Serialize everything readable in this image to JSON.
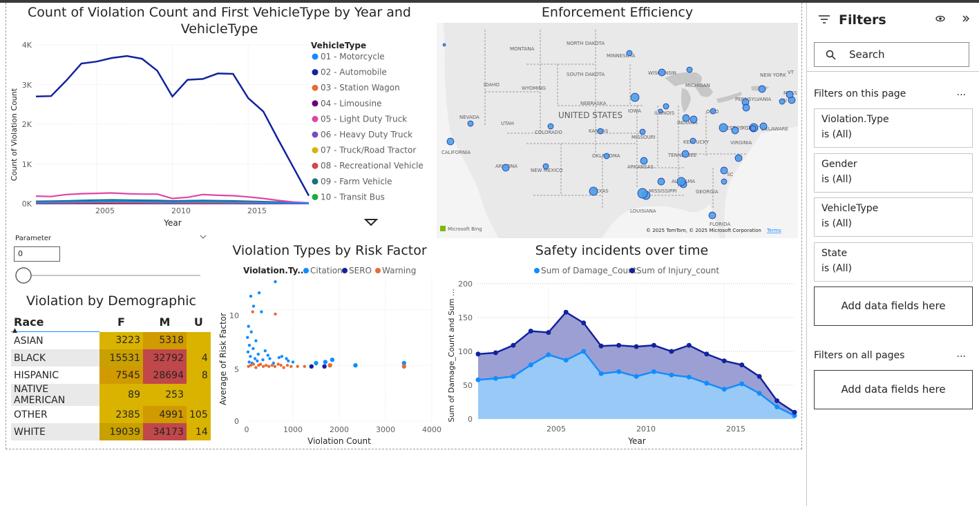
{
  "charts": {
    "line": {
      "title": "Count of Violation Count and First VehicleType by Year and VehicleType"
    },
    "map": {
      "title": "Enforcement Efficiency"
    },
    "scatter": {
      "title": "Violation Types by Risk Factor"
    },
    "area": {
      "title": "Safety incidents over time"
    },
    "matrix": {
      "title": "Violation by Demographic"
    }
  },
  "chart_data": [
    {
      "type": "line",
      "title": "Count of Violation Count and First VehicleType by Year and VehicleType",
      "xlabel": "Year",
      "ylabel": "Count of Violation Count",
      "xlim": [
        2001,
        2019
      ],
      "ylim": [
        0,
        4000
      ],
      "xticks": [
        "2005",
        "2010",
        "2015"
      ],
      "yticks": [
        "0K",
        "1K",
        "2K",
        "3K",
        "4K"
      ],
      "legend_title": "VehicleType",
      "legend_position": "right",
      "x": [
        2001,
        2002,
        2003,
        2004,
        2005,
        2006,
        2007,
        2008,
        2009,
        2010,
        2011,
        2012,
        2013,
        2014,
        2015,
        2016,
        2017,
        2018,
        2019
      ],
      "series": [
        {
          "name": "01 - Motorcycle",
          "color": "#118DFF",
          "values": [
            30,
            35,
            40,
            45,
            50,
            55,
            50,
            45,
            40,
            35,
            40,
            45,
            40,
            35,
            30,
            25,
            20,
            15,
            10
          ]
        },
        {
          "name": "02 - Automobile",
          "color": "#12239E",
          "values": [
            2700,
            2710,
            3100,
            3530,
            3580,
            3670,
            3720,
            3650,
            3350,
            2700,
            3120,
            3140,
            3280,
            3270,
            2660,
            2320,
            1600,
            900,
            200
          ]
        },
        {
          "name": "03 - Station Wagon",
          "color": "#E66C37",
          "values": [
            20,
            22,
            25,
            28,
            30,
            30,
            28,
            26,
            24,
            22,
            22,
            24,
            22,
            20,
            18,
            15,
            12,
            8,
            4
          ]
        },
        {
          "name": "04 - Limousine",
          "color": "#6B007B",
          "values": [
            5,
            5,
            6,
            6,
            7,
            7,
            6,
            6,
            5,
            5,
            5,
            5,
            5,
            5,
            4,
            4,
            3,
            2,
            1
          ]
        },
        {
          "name": "05 - Light Duty Truck",
          "color": "#E044A7",
          "values": [
            190,
            180,
            230,
            250,
            260,
            270,
            250,
            240,
            240,
            130,
            160,
            230,
            210,
            200,
            170,
            130,
            80,
            40,
            20
          ]
        },
        {
          "name": "06 - Heavy Duty Truck",
          "color": "#744EC2",
          "values": [
            40,
            42,
            45,
            50,
            55,
            58,
            55,
            52,
            48,
            40,
            45,
            50,
            46,
            42,
            38,
            30,
            22,
            14,
            8
          ]
        },
        {
          "name": "07 - Truck/Road Tractor",
          "color": "#D9B300",
          "values": [
            15,
            16,
            18,
            20,
            22,
            24,
            22,
            20,
            18,
            16,
            18,
            20,
            18,
            16,
            14,
            12,
            10,
            6,
            3
          ]
        },
        {
          "name": "08 - Recreational Vehicle",
          "color": "#D64550",
          "values": [
            8,
            8,
            9,
            10,
            10,
            11,
            10,
            9,
            9,
            8,
            8,
            9,
            8,
            8,
            7,
            6,
            5,
            3,
            2
          ]
        },
        {
          "name": "09 - Farm Vehicle",
          "color": "#197278",
          "values": [
            60,
            62,
            70,
            80,
            90,
            95,
            90,
            85,
            80,
            70,
            75,
            80,
            75,
            70,
            60,
            50,
            40,
            25,
            12
          ]
        },
        {
          "name": "10 - Transit Bus",
          "color": "#1AAB40",
          "values": [
            10,
            10,
            12,
            12,
            14,
            14,
            13,
            12,
            12,
            10,
            11,
            12,
            11,
            10,
            9,
            8,
            6,
            4,
            2
          ]
        }
      ]
    },
    {
      "type": "scatter",
      "title": "Violation Types by Risk Factor",
      "xlabel": "Violation Count",
      "ylabel": "Average of Risk Factor",
      "xlim": [
        0,
        4000
      ],
      "ylim": [
        0,
        13
      ],
      "xticks": [
        "0",
        "1000",
        "2000",
        "3000",
        "4000"
      ],
      "yticks": [
        "0",
        "5",
        "10"
      ],
      "legend_title": "Violation.Ty...",
      "legend_position": "top",
      "series": [
        {
          "name": "Citation",
          "color": "#118DFF",
          "points": [
            [
              620,
              12.5
            ],
            [
              270,
              11.5
            ],
            [
              90,
              11.2
            ],
            [
              150,
              10.3
            ],
            [
              320,
              9.8
            ],
            [
              40,
              8.5
            ],
            [
              100,
              8.0
            ],
            [
              20,
              7.5
            ],
            [
              200,
              7.2
            ],
            [
              60,
              6.8
            ],
            [
              140,
              6.5
            ],
            [
              30,
              6.2
            ],
            [
              250,
              6.0
            ],
            [
              80,
              5.8
            ],
            [
              180,
              5.6
            ],
            [
              350,
              5.5
            ],
            [
              500,
              5.6
            ],
            [
              700,
              5.7
            ],
            [
              900,
              5.4
            ],
            [
              1000,
              5.3
            ],
            [
              1500,
              5.2
            ],
            [
              1700,
              5.3
            ],
            [
              1850,
              5.5
            ],
            [
              2350,
              5.0
            ],
            [
              3400,
              5.2
            ],
            [
              400,
              6.3
            ],
            [
              760,
              5.8
            ],
            [
              860,
              5.6
            ],
            [
              55,
              5.3
            ],
            [
              120,
              5.2
            ],
            [
              230,
              5.4
            ],
            [
              460,
              5.9
            ],
            [
              580,
              5.2
            ]
          ]
        },
        {
          "name": "SERO",
          "color": "#12239E",
          "points": [
            [
              1400,
              4.9
            ],
            [
              1680,
              4.9
            ]
          ]
        },
        {
          "name": "Warning",
          "color": "#E66C37",
          "points": [
            [
              40,
              4.9
            ],
            [
              90,
              5.0
            ],
            [
              150,
              5.1
            ],
            [
              200,
              4.8
            ],
            [
              260,
              5.0
            ],
            [
              300,
              5.1
            ],
            [
              360,
              4.9
            ],
            [
              420,
              5.0
            ],
            [
              480,
              4.9
            ],
            [
              550,
              5.0
            ],
            [
              610,
              4.9
            ],
            [
              680,
              5.1
            ],
            [
              740,
              5.0
            ],
            [
              800,
              4.8
            ],
            [
              880,
              5.0
            ],
            [
              960,
              4.9
            ],
            [
              1100,
              4.9
            ],
            [
              1250,
              4.9
            ],
            [
              1800,
              5.0
            ],
            [
              3400,
              4.9
            ],
            [
              620,
              9.6
            ],
            [
              130,
              9.8
            ]
          ]
        }
      ]
    },
    {
      "type": "area",
      "title": "Safety incidents over time",
      "xlabel": "Year",
      "ylabel": "Sum of Damage_Count and Sum ...",
      "xlim": [
        2001,
        2019
      ],
      "ylim": [
        0,
        200
      ],
      "xticks": [
        "2005",
        "2010",
        "2015"
      ],
      "yticks": [
        "0",
        "50",
        "100",
        "150",
        "200"
      ],
      "legend_position": "top",
      "x": [
        2001,
        2002,
        2003,
        2004,
        2005,
        2006,
        2007,
        2008,
        2009,
        2010,
        2011,
        2012,
        2013,
        2014,
        2015,
        2016,
        2017,
        2018,
        2019
      ],
      "series": [
        {
          "name": "Sum of Damage_Count",
          "color": "#118DFF",
          "values": [
            58,
            60,
            63,
            80,
            95,
            87,
            100,
            67,
            70,
            63,
            70,
            65,
            62,
            53,
            44,
            52,
            38,
            18,
            5
          ]
        },
        {
          "name": "Sum of Injury_count",
          "color": "#12239E",
          "values": [
            96,
            98,
            109,
            130,
            128,
            158,
            142,
            108,
            109,
            107,
            109,
            100,
            109,
            96,
            86,
            80,
            63,
            27,
            10
          ]
        }
      ]
    },
    {
      "type": "table",
      "title": "Violation by Demographic",
      "columns": [
        "Race",
        "F",
        "M",
        "U"
      ],
      "rows": [
        {
          "race": "ASIAN",
          "F": "3223",
          "M": "5318",
          "U": ""
        },
        {
          "race": "BLACK",
          "F": "15531",
          "M": "32792",
          "U": "4"
        },
        {
          "race": "HISPANIC",
          "F": "7545",
          "M": "28694",
          "U": "8"
        },
        {
          "race": "NATIVE AMERICAN",
          "F": "89",
          "M": "253",
          "U": ""
        },
        {
          "race": "OTHER",
          "F": "2385",
          "M": "4991",
          "U": "105"
        },
        {
          "race": "WHITE",
          "F": "19039",
          "M": "34173",
          "U": "14"
        }
      ]
    }
  ],
  "map": {
    "labels": {
      "montana": "MONTANA",
      "north_dakota": "NORTH DAKOTA",
      "minnesota": "MINNESOTA",
      "south_dakota": "SOUTH DAKOTA",
      "wisconsin": "WISCONSIN",
      "michigan": "MICHIGAN",
      "idaho": "IDAHO",
      "wyoming": "WYOMING",
      "iowa": "IOWA",
      "nebraska": "NEBRASKA",
      "united_states": "UNITED STATES",
      "nevada": "NEVADA",
      "utah": "UTAH",
      "illinois": "ILLINOIS",
      "indiana": "INDIANA",
      "ohio": "OHIO",
      "pennsylvania": "PENNSYLVANIA",
      "new_york": "NEW YORK",
      "colorado": "COLORADO",
      "kansas": "KANSAS",
      "missouri": "MISSOURI",
      "west_virginia": "WEST VIRGINIA",
      "virginia": "VIRGINIA",
      "kentucky": "KENTUCKY",
      "california": "CALIFORNIA",
      "oklahoma": "OKLAHOMA",
      "arizona": "ARIZONA",
      "new_mexico": "NEW MEXICO",
      "arkansas": "ARKANSAS",
      "tennessee": "TENNESSEE",
      "north_carolina": "NC",
      "south_carolina": "SC",
      "texas": "TEXAS",
      "mississippi": "MISSISSIPPI",
      "alabama": "ALABAMA",
      "georgia": "GEORGIA",
      "louisiana": "LOUISIANA",
      "florida": "FLORIDA",
      "delaware": "DELAWARE",
      "vt": "VT",
      "mass": "MASS",
      "ri": "RI"
    },
    "attribution": "© 2025 TomTom, © 2025 Microsoft Corporation",
    "terms": "Terms",
    "bing": "Microsoft Bing"
  },
  "parameter": {
    "label": "Parameter",
    "value": "0"
  },
  "filters": {
    "title": "Filters",
    "search_placeholder": "Search",
    "on_this_page": "Filters on this page",
    "on_all_pages": "Filters on all pages",
    "more": "...",
    "cards": [
      {
        "name": "Violation.Type",
        "value": "is (All)"
      },
      {
        "name": "Gender",
        "value": "is (All)"
      },
      {
        "name": "VehicleType",
        "value": "is (All)"
      },
      {
        "name": "State",
        "value": "is (All)"
      }
    ],
    "add_fields": "Add data fields here",
    "add_fields_all": "Add data fields here"
  },
  "colors": {
    "accent_dark": "#12239E",
    "accent_light": "#118DFF",
    "orange": "#E66C37",
    "heat_low": "#D9B300",
    "heat_mid": "#D09A00",
    "heat_high": "#C0474A"
  }
}
